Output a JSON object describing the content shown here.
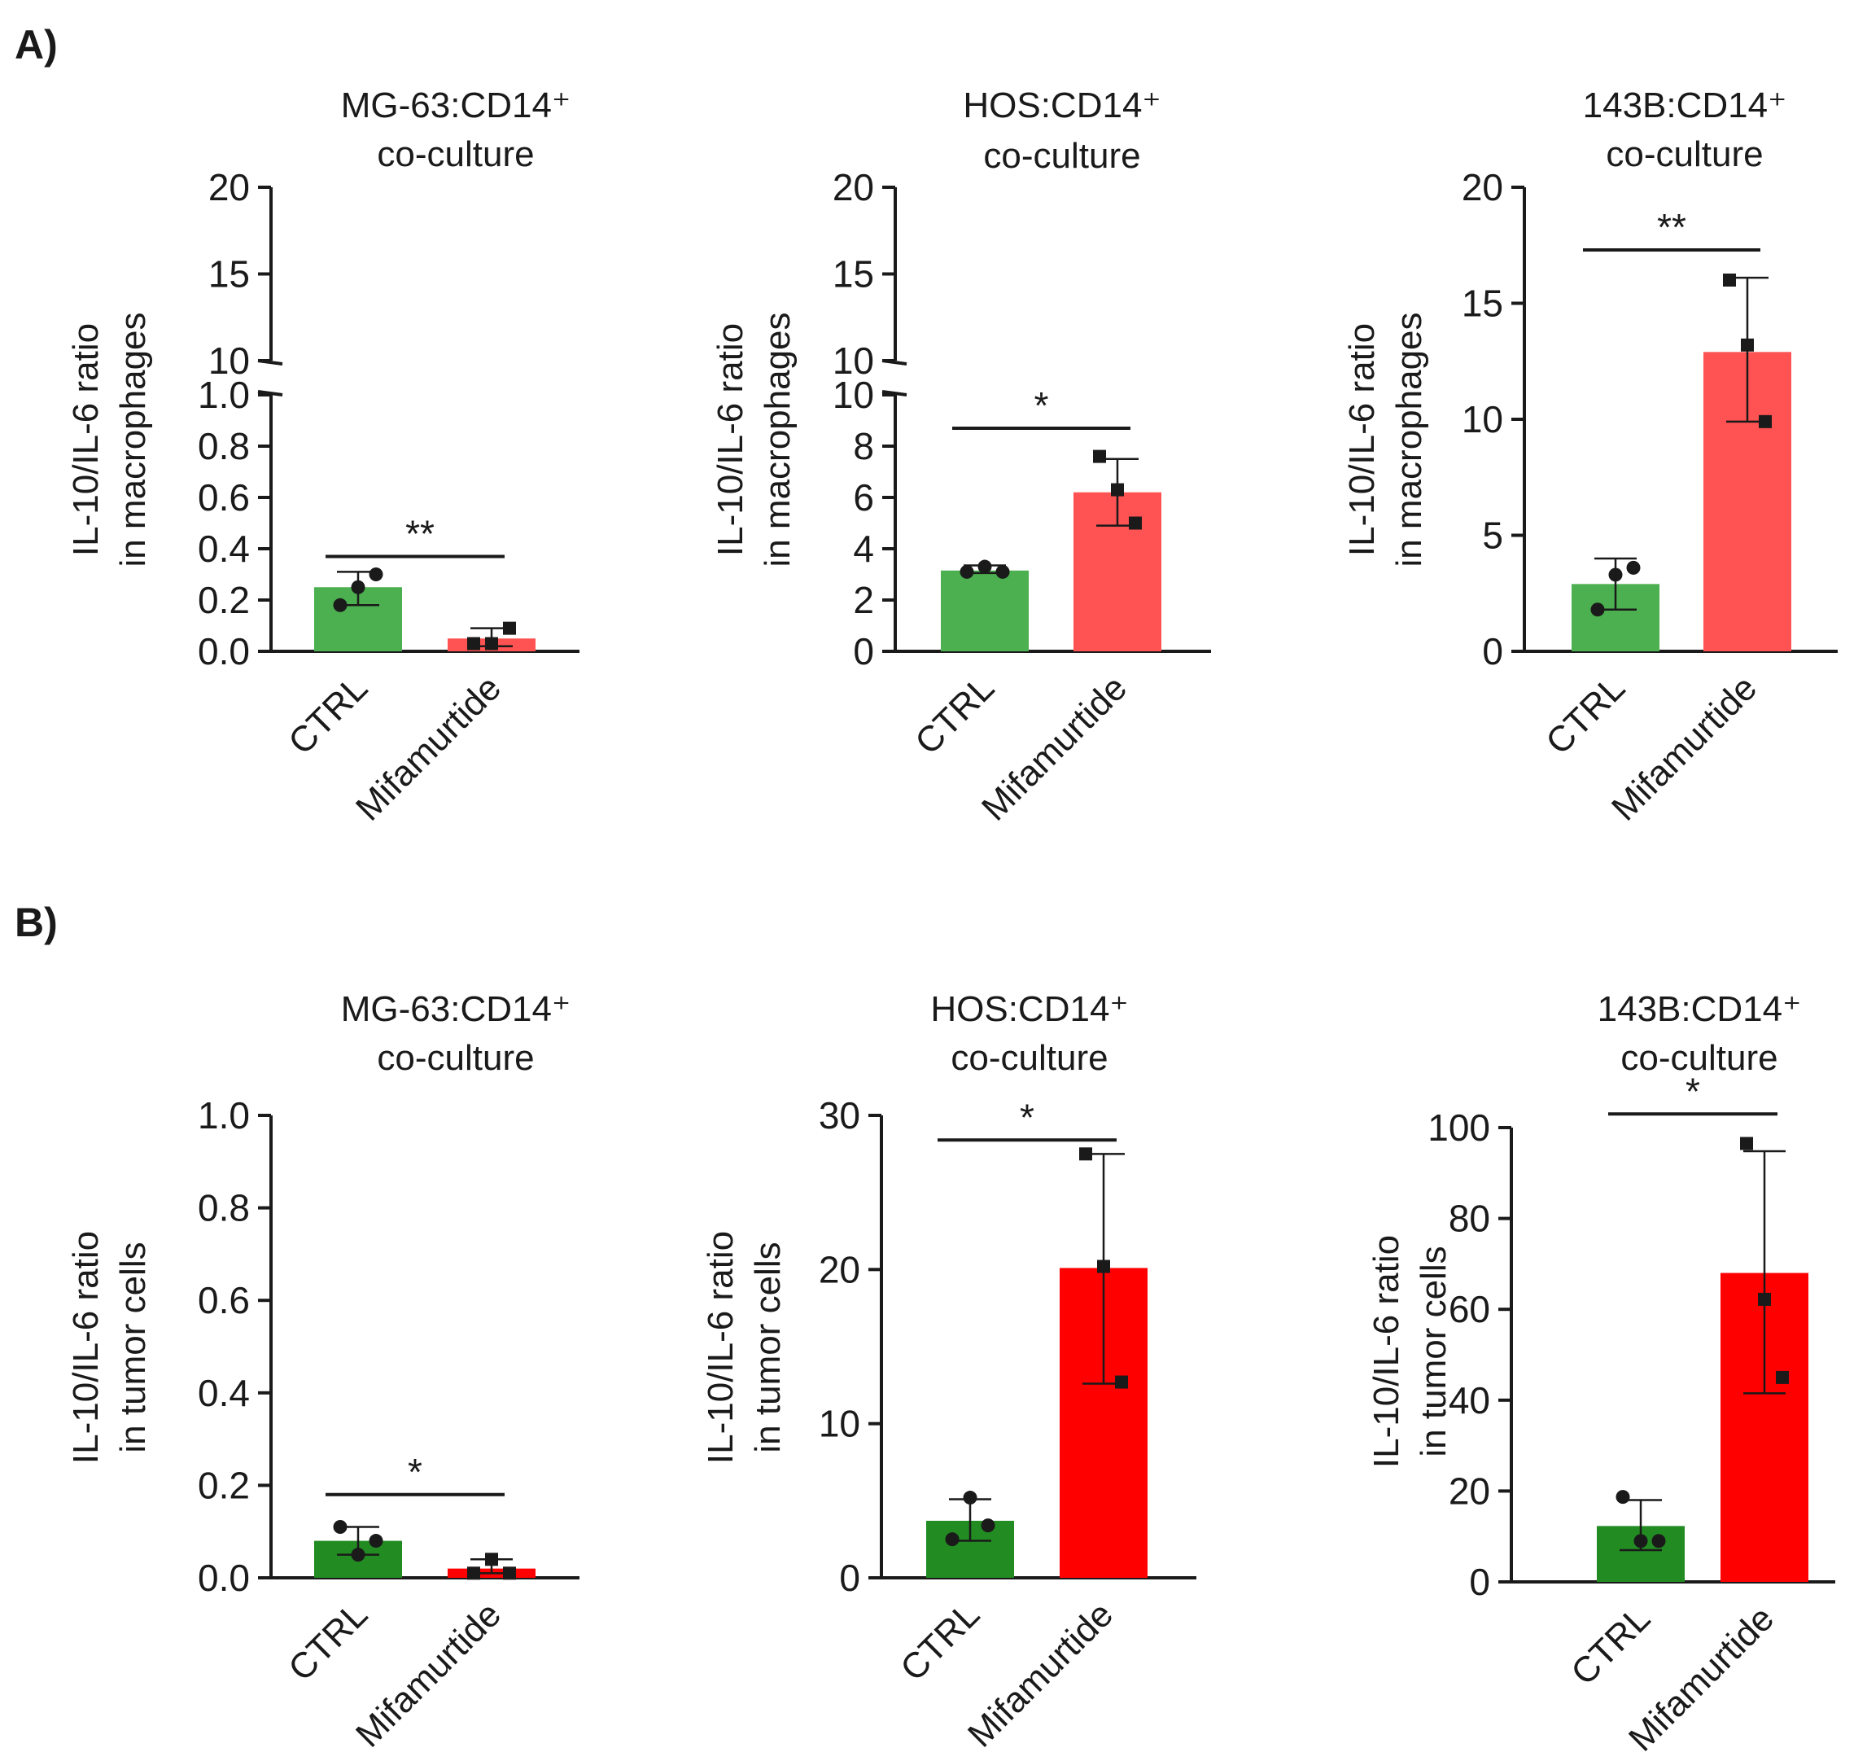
{
  "figure": {
    "panel_labels": [
      "A)",
      "B)"
    ],
    "colors": {
      "ctrl_a": "#4caf50",
      "treat_a": "#ff5252",
      "ctrl_b": "#228b22",
      "treat_b": "#ff0000",
      "ink": "#1a1a1a"
    }
  },
  "chart_data": [
    {
      "id": "A1",
      "panel": "A)",
      "type": "bar",
      "broken_axis": true,
      "title": [
        "MG-63:CD14⁺",
        "co-culture"
      ],
      "ylabel": [
        "IL-10/IL-6 ratio",
        "in macrophages"
      ],
      "categories": [
        "CTRL",
        "Mifamurtide"
      ],
      "lower_segment": {
        "ylim": [
          0,
          1.0
        ],
        "ticks": [
          "0.0",
          "0.2",
          "0.4",
          "0.6",
          "0.8",
          "1.0"
        ]
      },
      "upper_segment": {
        "ylim": [
          10,
          20
        ],
        "ticks": [
          "10",
          "15",
          "20"
        ]
      },
      "series": [
        {
          "name": "CTRL",
          "mean": 0.25,
          "sd_low": 0.18,
          "sd_high": 0.31,
          "points": [
            0.18,
            0.25,
            0.3
          ],
          "marker": "circle"
        },
        {
          "name": "Mifamurtide",
          "mean": 0.05,
          "sd_low": 0.02,
          "sd_high": 0.09,
          "points": [
            0.03,
            0.03,
            0.09
          ],
          "marker": "square"
        }
      ],
      "significance": {
        "label": "**",
        "y": 0.37
      }
    },
    {
      "id": "A2",
      "panel": "A)",
      "type": "bar",
      "broken_axis": true,
      "title": [
        "HOS:CD14⁺",
        "co-culture"
      ],
      "ylabel": [
        "IL-10/IL-6 ratio",
        "in macrophages"
      ],
      "categories": [
        "CTRL",
        "Mifamurtide"
      ],
      "lower_segment": {
        "ylim": [
          0,
          10
        ],
        "ticks": [
          "0",
          "2",
          "4",
          "6",
          "8",
          "10"
        ]
      },
      "upper_segment": {
        "ylim": [
          10,
          20
        ],
        "ticks": [
          "10",
          "15",
          "20"
        ]
      },
      "series": [
        {
          "name": "CTRL",
          "mean": 3.15,
          "sd_low": 3.05,
          "sd_high": 3.35,
          "points": [
            3.1,
            3.3,
            3.1
          ],
          "marker": "circle"
        },
        {
          "name": "Mifamurtide",
          "mean": 6.2,
          "sd_low": 4.9,
          "sd_high": 7.5,
          "points": [
            7.6,
            6.3,
            5.0
          ],
          "marker": "square"
        }
      ],
      "significance": {
        "label": "*",
        "y": 8.7
      }
    },
    {
      "id": "A3",
      "panel": "A)",
      "type": "bar",
      "broken_axis": false,
      "title": [
        "143B:CD14⁺",
        "co-culture"
      ],
      "ylabel": [
        "IL-10/IL-6 ratio",
        "in macrophages"
      ],
      "categories": [
        "CTRL",
        "Mifamurtide"
      ],
      "ylim": [
        0,
        20
      ],
      "ticks": [
        "0",
        "5",
        "10",
        "15",
        "20"
      ],
      "series": [
        {
          "name": "CTRL",
          "mean": 2.9,
          "sd_low": 1.8,
          "sd_high": 4.0,
          "points": [
            1.8,
            3.3,
            3.6
          ],
          "marker": "circle"
        },
        {
          "name": "Mifamurtide",
          "mean": 12.9,
          "sd_low": 9.9,
          "sd_high": 16.1,
          "points": [
            16.0,
            13.2,
            9.9
          ],
          "marker": "square"
        }
      ],
      "significance": {
        "label": "**",
        "y": 17.3
      }
    },
    {
      "id": "B1",
      "panel": "B)",
      "type": "bar",
      "broken_axis": false,
      "title": [
        "MG-63:CD14⁺",
        "co-culture"
      ],
      "ylabel": [
        "IL-10/IL-6 ratio",
        "in tumor cells"
      ],
      "categories": [
        "CTRL",
        "Mifamurtide"
      ],
      "ylim": [
        0,
        1.0
      ],
      "ticks": [
        "0.0",
        "0.2",
        "0.4",
        "0.6",
        "0.8",
        "1.0"
      ],
      "series": [
        {
          "name": "CTRL",
          "mean": 0.08,
          "sd_low": 0.05,
          "sd_high": 0.11,
          "points": [
            0.11,
            0.05,
            0.08
          ],
          "marker": "circle"
        },
        {
          "name": "Mifamurtide",
          "mean": 0.02,
          "sd_low": 0.01,
          "sd_high": 0.04,
          "points": [
            0.01,
            0.04,
            0.01
          ],
          "marker": "square"
        }
      ],
      "significance": {
        "label": "*",
        "y": 0.18
      }
    },
    {
      "id": "B2",
      "panel": "B)",
      "type": "bar",
      "broken_axis": false,
      "title": [
        "HOS:CD14⁺",
        "co-culture"
      ],
      "ylabel": [
        "IL-10/IL-6 ratio",
        "in tumor cells"
      ],
      "categories": [
        "CTRL",
        "Mifamurtide"
      ],
      "ylim": [
        0,
        30
      ],
      "ticks": [
        "0",
        "10",
        "20",
        "30"
      ],
      "series": [
        {
          "name": "CTRL",
          "mean": 3.7,
          "sd_low": 2.4,
          "sd_high": 5.1,
          "points": [
            2.5,
            5.2,
            3.4
          ],
          "marker": "circle"
        },
        {
          "name": "Mifamurtide",
          "mean": 20.1,
          "sd_low": 12.6,
          "sd_high": 27.5,
          "points": [
            27.5,
            20.2,
            12.7
          ],
          "marker": "square"
        }
      ],
      "significance": {
        "label": "*",
        "y": 28.4
      }
    },
    {
      "id": "B3",
      "panel": "B)",
      "type": "bar",
      "broken_axis": false,
      "title": [
        "143B:CD14⁺",
        "co-culture"
      ],
      "ylabel": [
        "IL-10/IL-6 ratio",
        "in tumor cells"
      ],
      "categories": [
        "CTRL",
        "Mifamurtide"
      ],
      "ylim": [
        0,
        100
      ],
      "ticks": [
        "0",
        "20",
        "40",
        "60",
        "80",
        "100"
      ],
      "series": [
        {
          "name": "CTRL",
          "mean": 12.3,
          "sd_low": 7.0,
          "sd_high": 18.0,
          "points": [
            18.7,
            9.0,
            9.0
          ],
          "marker": "circle"
        },
        {
          "name": "Mifamurtide",
          "mean": 68.0,
          "sd_low": 41.5,
          "sd_high": 94.8,
          "points": [
            96.5,
            62.2,
            45.0
          ],
          "marker": "square"
        }
      ],
      "significance": {
        "label": "*",
        "y": 103
      }
    }
  ]
}
